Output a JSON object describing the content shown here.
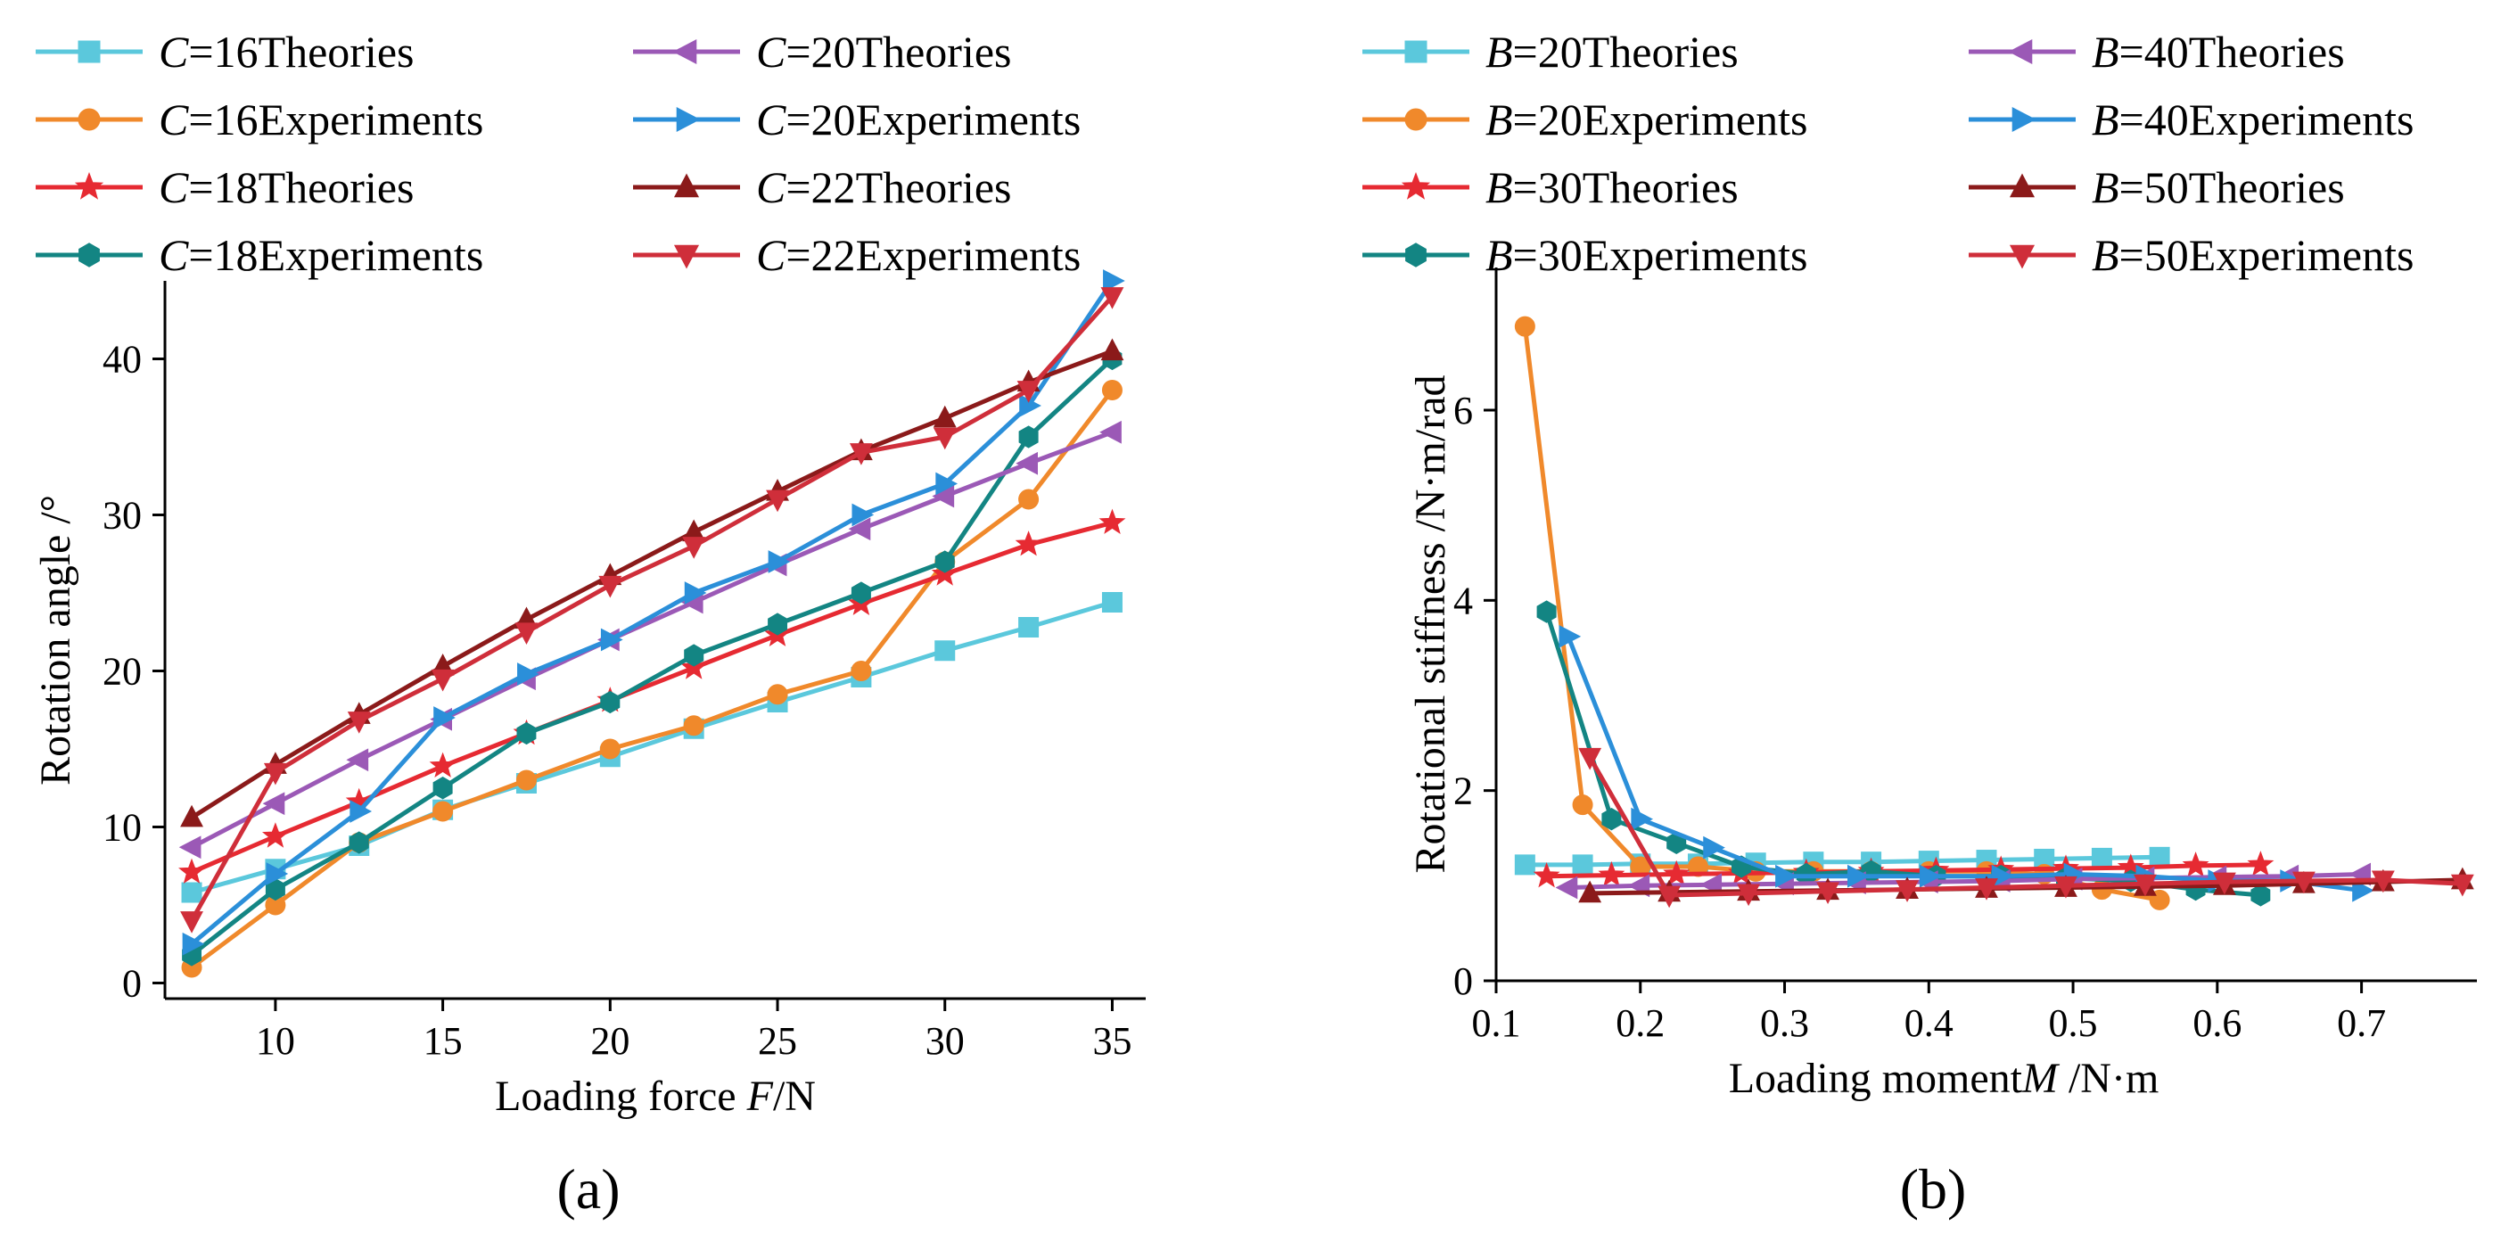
{
  "chart_data": [
    {
      "type": "line",
      "panel_label": "(a)",
      "xlabel_prefix": "Loading force ",
      "xlabel_var": "F",
      "xlabel_unit": "/N",
      "ylabel": "Rotation angle /°",
      "xlim": [
        6.7,
        36
      ],
      "ylim": [
        -1,
        45
      ],
      "xticks": [
        10,
        15,
        20,
        25,
        30,
        35
      ],
      "yticks": [
        0,
        10,
        20,
        30,
        40
      ],
      "legend_var": "C",
      "legend_columns": 2,
      "series": [
        {
          "var": "C",
          "value": "=16",
          "kind": "Theories",
          "color": "#5bc8dc",
          "marker": "square",
          "x": [
            7.5,
            10,
            12.5,
            15,
            17.5,
            20,
            22.5,
            25,
            27.5,
            30,
            32.5,
            35
          ],
          "y": [
            5.8,
            7.3,
            8.8,
            11.1,
            12.8,
            14.5,
            16.3,
            18.0,
            19.6,
            21.3,
            22.8,
            24.4
          ]
        },
        {
          "var": "C",
          "value": "=16",
          "kind": "Experiments",
          "color": "#f0892b",
          "marker": "circle",
          "x": [
            7.5,
            10,
            12.5,
            15,
            17.5,
            20,
            22.5,
            25,
            27.5,
            30,
            32.5,
            35
          ],
          "y": [
            1.0,
            5.0,
            9.0,
            11.0,
            13.0,
            15.0,
            16.5,
            18.5,
            20.0,
            27.0,
            31.0,
            38.0
          ]
        },
        {
          "var": "C",
          "value": "=18",
          "kind": "Theories",
          "color": "#e62a32",
          "marker": "star",
          "x": [
            7.5,
            10,
            12.5,
            15,
            17.5,
            20,
            22.5,
            25,
            27.5,
            30,
            32.5,
            35
          ],
          "y": [
            7.1,
            9.4,
            11.6,
            13.9,
            16.0,
            18.1,
            20.2,
            22.3,
            24.3,
            26.2,
            28.1,
            29.5
          ]
        },
        {
          "var": "C",
          "value": "=18",
          "kind": "Experiments",
          "color": "#138583",
          "marker": "hexagon",
          "x": [
            7.5,
            10,
            12.5,
            15,
            17.5,
            20,
            22.5,
            25,
            27.5,
            30,
            32.5,
            35
          ],
          "y": [
            1.8,
            6.0,
            9.0,
            12.5,
            16.0,
            18.0,
            21.0,
            23.0,
            25.0,
            27.0,
            35.0,
            40.0
          ]
        },
        {
          "var": "C",
          "value": "=20",
          "kind": "Theories",
          "color": "#9b59b6",
          "marker": "triangle-left",
          "x": [
            7.5,
            10,
            12.5,
            15,
            17.5,
            20,
            22.5,
            25,
            27.5,
            30,
            32.5,
            35
          ],
          "y": [
            8.7,
            11.5,
            14.3,
            16.9,
            19.5,
            22.0,
            24.4,
            26.8,
            29.1,
            31.2,
            33.3,
            35.3
          ]
        },
        {
          "var": "C",
          "value": "=20",
          "kind": "Experiments",
          "color": "#2b8fd9",
          "marker": "triangle-right",
          "x": [
            7.5,
            10,
            12.5,
            15,
            17.5,
            20,
            22.5,
            25,
            27.5,
            30,
            32.5,
            35
          ],
          "y": [
            2.5,
            7.0,
            11.0,
            17.0,
            19.8,
            22.0,
            25.0,
            27.0,
            30.0,
            32.0,
            37.0,
            45.0
          ]
        },
        {
          "var": "C",
          "value": "=22",
          "kind": "Theories",
          "color": "#8b1a1a",
          "marker": "triangle-up",
          "x": [
            7.5,
            10,
            12.5,
            15,
            17.5,
            20,
            22.5,
            25,
            27.5,
            30,
            32.5,
            35
          ],
          "y": [
            10.6,
            14.0,
            17.2,
            20.3,
            23.3,
            26.1,
            28.9,
            31.5,
            34.1,
            36.2,
            38.5,
            40.5
          ]
        },
        {
          "var": "C",
          "value": "=22",
          "kind": "Experiments",
          "color": "#cf2e3a",
          "marker": "triangle-down",
          "x": [
            7.5,
            10,
            12.5,
            15,
            17.5,
            20,
            22.5,
            25,
            27.5,
            30,
            32.5,
            35
          ],
          "y": [
            4.0,
            13.5,
            16.8,
            19.5,
            22.5,
            25.5,
            28.0,
            31.0,
            34.0,
            35.0,
            38.0,
            44.0
          ]
        }
      ]
    },
    {
      "type": "line",
      "panel_label": "(b)",
      "xlabel_prefix": "Loading moment",
      "xlabel_var": "M",
      "xlabel_unit": " /N·m",
      "ylabel": "Rotational stiffness /N·m/rad",
      "xlim": [
        0.1,
        0.78
      ],
      "ylim": [
        0,
        7.5
      ],
      "xticks": [
        0.1,
        0.2,
        0.3,
        0.4,
        0.5,
        0.6,
        0.7
      ],
      "xtick_labels": [
        "0.1",
        "0.2",
        "0.3",
        "0.4",
        "0.5",
        "0.6",
        "0.7"
      ],
      "yticks": [
        0,
        2,
        4,
        6
      ],
      "legend_var": "B",
      "legend_columns": 2,
      "series": [
        {
          "var": "B",
          "value": "=20",
          "kind": "Theories",
          "color": "#5bc8dc",
          "marker": "square",
          "x": [
            0.12,
            0.16,
            0.2,
            0.24,
            0.28,
            0.32,
            0.36,
            0.4,
            0.44,
            0.48,
            0.52,
            0.56
          ],
          "y": [
            1.22,
            1.22,
            1.23,
            1.23,
            1.24,
            1.25,
            1.25,
            1.26,
            1.27,
            1.28,
            1.29,
            1.3
          ]
        },
        {
          "var": "B",
          "value": "=20",
          "kind": "Experiments",
          "color": "#f0892b",
          "marker": "circle",
          "x": [
            0.12,
            0.16,
            0.2,
            0.24,
            0.28,
            0.32,
            0.36,
            0.4,
            0.44,
            0.48,
            0.52,
            0.56
          ],
          "y": [
            6.88,
            1.85,
            1.2,
            1.2,
            1.15,
            1.15,
            1.15,
            1.15,
            1.15,
            1.12,
            0.96,
            0.85
          ]
        },
        {
          "var": "B",
          "value": "=30",
          "kind": "Theories",
          "color": "#e62a32",
          "marker": "star",
          "x": [
            0.135,
            0.18,
            0.225,
            0.27,
            0.315,
            0.36,
            0.405,
            0.45,
            0.495,
            0.54,
            0.585,
            0.63
          ],
          "y": [
            1.1,
            1.11,
            1.12,
            1.13,
            1.14,
            1.15,
            1.16,
            1.17,
            1.18,
            1.19,
            1.21,
            1.22
          ]
        },
        {
          "var": "B",
          "value": "=30",
          "kind": "Experiments",
          "color": "#138583",
          "marker": "hexagon",
          "x": [
            0.135,
            0.18,
            0.225,
            0.27,
            0.315,
            0.36,
            0.405,
            0.45,
            0.495,
            0.54,
            0.585,
            0.63
          ],
          "y": [
            3.88,
            1.7,
            1.45,
            1.2,
            1.12,
            1.15,
            1.1,
            1.1,
            1.08,
            1.05,
            0.96,
            0.9
          ]
        },
        {
          "var": "B",
          "value": "=40",
          "kind": "Theories",
          "color": "#9b59b6",
          "marker": "triangle-left",
          "x": [
            0.15,
            0.2,
            0.25,
            0.3,
            0.35,
            0.4,
            0.45,
            0.5,
            0.55,
            0.6,
            0.65,
            0.7
          ],
          "y": [
            0.98,
            1.0,
            1.01,
            1.02,
            1.03,
            1.04,
            1.05,
            1.07,
            1.08,
            1.09,
            1.1,
            1.12
          ]
        },
        {
          "var": "B",
          "value": "=40",
          "kind": "Experiments",
          "color": "#2b8fd9",
          "marker": "triangle-right",
          "x": [
            0.15,
            0.2,
            0.25,
            0.3,
            0.35,
            0.4,
            0.45,
            0.5,
            0.55,
            0.6,
            0.65,
            0.7
          ],
          "y": [
            3.62,
            1.7,
            1.4,
            1.1,
            1.1,
            1.1,
            1.1,
            1.12,
            1.1,
            1.05,
            1.05,
            0.95
          ]
        },
        {
          "var": "B",
          "value": "=50",
          "kind": "Theories",
          "color": "#8b1a1a",
          "marker": "triangle-up",
          "x": [
            0.165,
            0.22,
            0.275,
            0.33,
            0.385,
            0.44,
            0.495,
            0.55,
            0.605,
            0.66,
            0.715,
            0.77
          ],
          "y": [
            0.92,
            0.93,
            0.94,
            0.95,
            0.96,
            0.97,
            0.98,
            0.99,
            1.0,
            1.02,
            1.04,
            1.06
          ]
        },
        {
          "var": "B",
          "value": "=50",
          "kind": "Experiments",
          "color": "#cf2e3a",
          "marker": "triangle-down",
          "x": [
            0.165,
            0.22,
            0.275,
            0.33,
            0.385,
            0.44,
            0.495,
            0.55,
            0.605,
            0.66,
            0.715,
            0.77
          ],
          "y": [
            2.35,
            0.9,
            0.92,
            0.94,
            0.96,
            0.98,
            1.0,
            1.02,
            1.04,
            1.05,
            1.06,
            1.02
          ]
        }
      ]
    }
  ]
}
